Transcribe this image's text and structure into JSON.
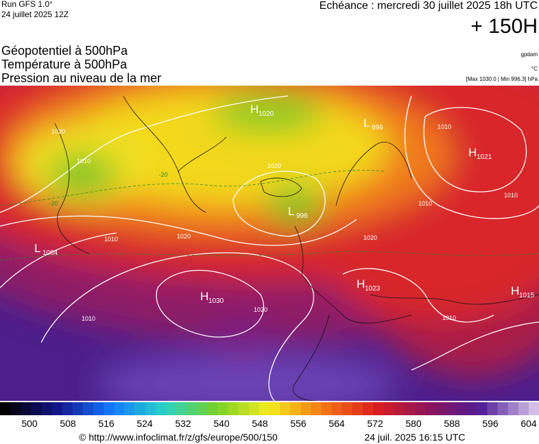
{
  "header": {
    "run": "Run GFS 1.0°",
    "run_date": "24 juillet 2025 12Z",
    "valid": "Echéance : mercredi 30 juillet 2025 18h UTC",
    "lead": "+ 150H"
  },
  "layers": [
    "Géopotentiel à 500hPa",
    "Température à 500hPa",
    "Pression au niveau de la mer"
  ],
  "units": [
    "gpdam",
    "°C",
    "[Max 1030.0 | Min 996.3] hPa"
  ],
  "pressure_centers": [
    {
      "letter": "H",
      "value": "1020"
    },
    {
      "letter": "L",
      "value": "996"
    },
    {
      "letter": "H",
      "value": "1021"
    },
    {
      "letter": "L",
      "value": "996"
    },
    {
      "letter": "L",
      "value": "1004"
    },
    {
      "letter": "H",
      "value": "1030"
    },
    {
      "letter": "H",
      "value": "1023"
    },
    {
      "letter": "H",
      "value": "1015"
    }
  ],
  "isobar_labels": [
    "1020",
    "1010",
    "1010",
    "1020",
    "1010",
    "1020",
    "1020",
    "1010",
    "1010",
    "1010",
    "1010",
    "1020"
  ],
  "isotherm_labels": [
    "-20",
    "-20"
  ],
  "colorbar": {
    "ticks": [
      500,
      508,
      516,
      524,
      532,
      540,
      548,
      556,
      564,
      572,
      580,
      588,
      596,
      604
    ]
  },
  "footer": {
    "source": "© http://www.infoclimat.fr/z/gfs/europe/500/150",
    "date": "24 juil. 2025 16:15 UTC"
  }
}
